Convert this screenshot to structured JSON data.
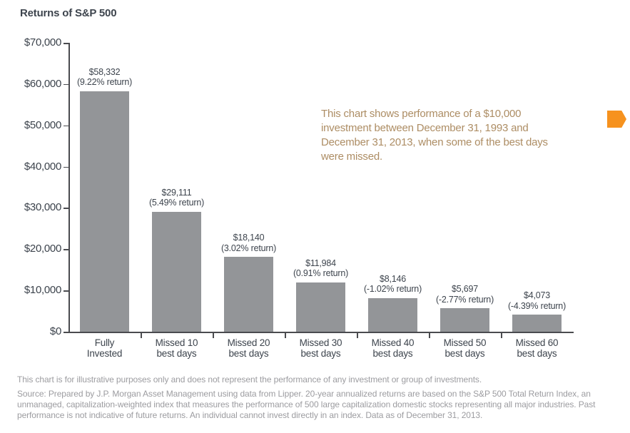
{
  "page": {
    "title": "Returns of S&P 500"
  },
  "annotation": {
    "text": "This chart shows performance of a $10,000 investment between December 31, 1993 and December 31, 2013, when some of the best days were missed."
  },
  "chart_data": {
    "type": "bar",
    "title": "Returns of S&P 500",
    "categories": [
      "Fully Invested",
      "Missed 10 best days",
      "Missed 20 best days",
      "Missed 30 best days",
      "Missed 40 best days",
      "Missed 50 best days",
      "Missed 60 best days"
    ],
    "category_label_lines": [
      [
        "Fully",
        "Invested"
      ],
      [
        "Missed 10",
        "best days"
      ],
      [
        "Missed 20",
        "best days"
      ],
      [
        "Missed 30",
        "best days"
      ],
      [
        "Missed 40",
        "best days"
      ],
      [
        "Missed 50",
        "best days"
      ],
      [
        "Missed 60",
        "best days"
      ]
    ],
    "values": [
      58332,
      29111,
      18140,
      11984,
      8146,
      5697,
      4073
    ],
    "value_labels": [
      "$58,332",
      "$29,111",
      "$18,140",
      "$11,984",
      "$8,146",
      "$5,697",
      "$4,073"
    ],
    "return_labels": [
      "(9.22% return)",
      "(5.49% return)",
      "(3.02% return)",
      "(0.91% return)",
      "(-1.02% return)",
      "(-2.77% return)",
      "(-4.39% return)"
    ],
    "returns_pct": [
      9.22,
      5.49,
      3.02,
      0.91,
      -1.02,
      -2.77,
      -4.39
    ],
    "ylim": [
      0,
      70000
    ],
    "ytick_step": 10000,
    "ytick_labels": [
      "$0",
      "$10,000",
      "$20,000",
      "$30,000",
      "$40,000",
      "$50,000",
      "$60,000",
      "$70,000"
    ],
    "xlabel": "",
    "ylabel": "",
    "grid": false,
    "legend": false
  },
  "colors": {
    "bar": "#939598",
    "axis": "#4a4b4f",
    "dark_text": "#3d444d",
    "annotation_text": "#ad8d64",
    "footnote_text": "#9c9ca0",
    "arrow": "#f6921e"
  },
  "footnote": "This chart is for illustrative purposes only and does not represent the performance of any investment or group of investments.",
  "source": "Source: Prepared by J.P. Morgan Asset Management using data from Lipper. 20-year annualized returns are based on the S&P 500 Total Return Index, an unmanaged, capitalization-weighted index that measures the performance of 500 large capitalization domestic stocks representing all major industries. Past performance is not indicative of future returns. An individual cannot invest directly in an index. Data as of December 31, 2013."
}
